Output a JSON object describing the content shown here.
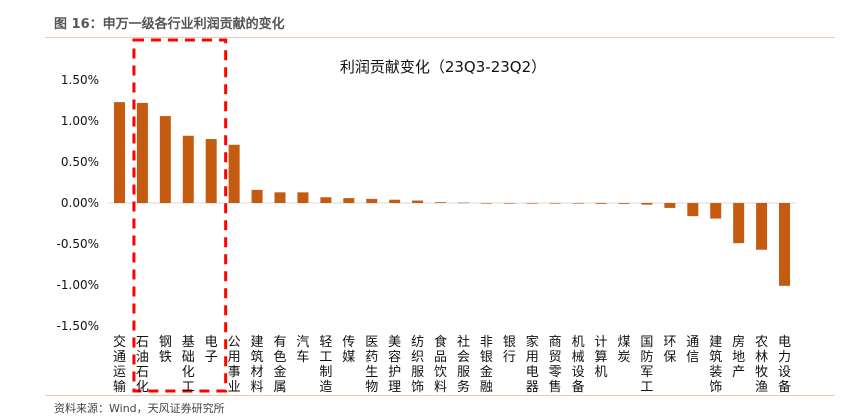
{
  "figure": {
    "title": "图 16：申万一级各行业利润贡献的变化",
    "source": "资料来源：Wind，天风证券研究所"
  },
  "chart_data": {
    "type": "bar",
    "title": "利润贡献变化（23Q3-23Q2）",
    "xlabel": "",
    "ylabel": "",
    "ylim": [
      -1.5,
      1.5
    ],
    "yticks": [
      "1.50%",
      "1.00%",
      "0.50%",
      "0.00%",
      "-0.50%",
      "-1.00%",
      "-1.50%"
    ],
    "unit": "%",
    "grid": false,
    "bar_color": "#c55a11",
    "highlight_box_color": "#ff0000",
    "highlight_categories": [
      "石油石化",
      "钢铁",
      "基础化工",
      "电子"
    ],
    "categories": [
      "交通运输",
      "石油石化",
      "钢铁",
      "基础化工",
      "电子",
      "公用事业",
      "建筑材料",
      "有色金属",
      "汽车",
      "轻工制造",
      "传媒",
      "医药生物",
      "美容护理",
      "纺织服饰",
      "食品饮料",
      "社会服务",
      "非银金融",
      "银行",
      "家用电器",
      "商贸零售",
      "机械设备",
      "计算机",
      "煤炭",
      "国防军工",
      "环保",
      "通信",
      "建筑装饰",
      "房地产",
      "农林牧渔",
      "电力设备"
    ],
    "values": [
      1.23,
      1.22,
      1.06,
      0.82,
      0.78,
      0.71,
      0.16,
      0.13,
      0.13,
      0.07,
      0.06,
      0.05,
      0.04,
      0.03,
      0.01,
      0.005,
      0.0,
      0.0,
      0.0,
      0.0,
      -0.005,
      -0.01,
      -0.01,
      -0.02,
      -0.06,
      -0.16,
      -0.19,
      -0.49,
      -0.57,
      -1.01
    ]
  }
}
